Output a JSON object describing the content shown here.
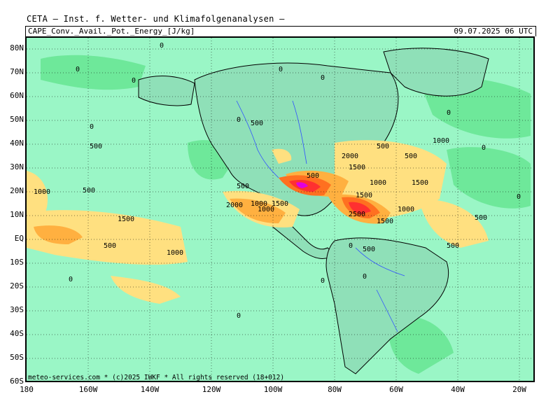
{
  "header": {
    "title": "CETA — Inst. f. Wetter- und Klimafolgenanalysen —",
    "parameter": "CAPE_Conv._Avail._Pot._Energy_[J/kg]",
    "valid_time": "09.07.2025 06 UTC"
  },
  "axes": {
    "lat_labels": [
      "80N",
      "70N",
      "60N",
      "50N",
      "40N",
      "30N",
      "20N",
      "10N",
      "EQ",
      "10S",
      "20S",
      "30S",
      "40S",
      "50S",
      "60S"
    ],
    "lon_labels": [
      "180",
      "160W",
      "140W",
      "120W",
      "100W",
      "80W",
      "60W",
      "40W",
      "20W"
    ]
  },
  "contour_labels": {
    "values": [
      "0",
      "0",
      "0",
      "0",
      "0",
      "0",
      "0",
      "0",
      "0",
      "0",
      "500",
      "500",
      "500",
      "500",
      "500",
      "500",
      "500",
      "500",
      "1000",
      "1000",
      "1000",
      "1000",
      "1000",
      "1000",
      "1500",
      "1500",
      "1500",
      "1500",
      "1500",
      "2000",
      "2000",
      "2500",
      "500",
      "0",
      "0",
      "0",
      "500",
      "500",
      "1000",
      "1500",
      "0",
      "0"
    ]
  },
  "footer": {
    "credit": "meteo-services.com * (c)2025 IWKF * All rights reserved (18+012)"
  },
  "colors": {
    "background_low": "#9af6c6",
    "cape_500": "#ffe080",
    "cape_1000": "#ffb040",
    "cape_1500": "#ff7020",
    "cape_2000": "#ff3030",
    "cape_2500": "#e000e0",
    "land_border": "#000000",
    "rivers": "#3050ff"
  }
}
